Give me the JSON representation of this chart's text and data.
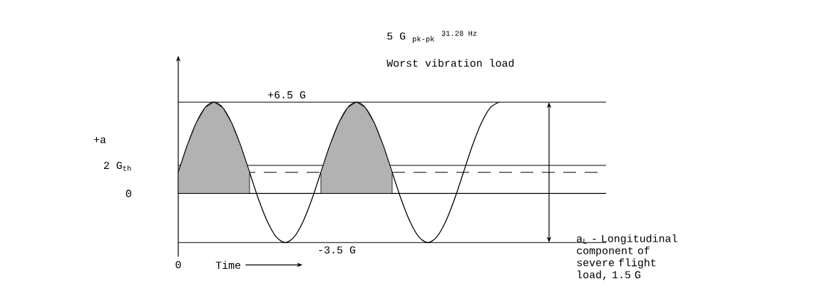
{
  "chart_data": {
    "type": "line",
    "ylabel": "+a",
    "xlabel": "Time",
    "categories": [
      null,
      null,
      null,
      null,
      null,
      null,
      null,
      null,
      null,
      null,
      null,
      null,
      null,
      null,
      null,
      null,
      null,
      null,
      null,
      null,
      null,
      null,
      null,
      null,
      null,
      null,
      null,
      null,
      null,
      null,
      null,
      null,
      null,
      null,
      null,
      null,
      null
    ],
    "yticks": [
      {
        "value": 0,
        "label": "0"
      },
      {
        "value": 2,
        "label": "2 G$_{th}$"
      }
    ],
    "series": [
      {
        "color": "#000000",
        "values": [
          1.5,
          3.4,
          5.0,
          6.1,
          6.5,
          6.1,
          5.0,
          3.4,
          1.5,
          -0.4,
          -2.0,
          -3.1,
          -3.5,
          -3.1,
          -2.0,
          -0.4,
          1.5,
          3.4,
          5.0,
          6.1,
          6.5,
          6.1,
          5.0,
          3.4,
          1.5,
          -0.4,
          -2.0,
          -3.1,
          -3.5,
          -3.1,
          -2.0,
          -0.4,
          1.5,
          3.4,
          5.0,
          6.1,
          6.5
        ]
      },
      {
        "type": "area",
        "color": "#000000",
        "values": [
          1.5,
          3.4,
          5.0,
          6.1,
          6.5,
          6.1,
          5.0,
          3.4,
          1.5,
          null,
          null,
          null,
          null,
          null,
          null,
          null,
          1.5,
          3.4,
          5.0,
          6.1,
          6.5,
          6.1,
          5.0,
          3.4,
          1.5,
          null,
          null,
          null,
          null,
          null,
          null,
          null,
          null,
          null,
          null,
          null,
          null
        ]
      }
    ],
    "ref_lines": [
      {
        "axis": "y",
        "value": 1.5,
        "line_style": "dashed"
      },
      {
        "axis": "y",
        "value": 6.5,
        "label": "+6.5 G"
      },
      {
        "axis": "y",
        "value": -3.5,
        "label": "-3.5 G"
      }
    ],
    "ylim": [
      -4.5,
      9
    ],
    "annotations": [
      "5 G $_{pk-pk}$ $^{31.28 Hz}$",
      "Worst vibration load",
      "a$_{L}$ - Longitudinal component of severe flight load, 1.5 G",
      "0"
    ],
    "grid": "y",
    "marker": "none",
    "line_style": "solid"
  }
}
